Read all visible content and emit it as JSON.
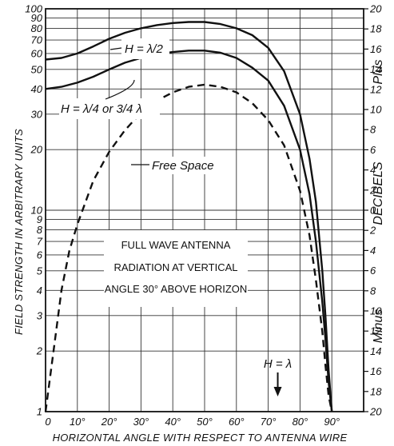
{
  "chart_data": {
    "type": "line",
    "xlabel": "HORIZONTAL ANGLE WITH RESPECT TO ANTENNA WIRE",
    "ylabel": "FIELD STRENGTH IN ARBITRARY UNITS",
    "y2label": "DECIBELS",
    "y2_plus_label": "Plus",
    "y2_minus_label": "Minus",
    "xlim": [
      0,
      100
    ],
    "ylim": [
      1,
      100
    ],
    "yscale": "log",
    "y2lim": [
      -20,
      20
    ],
    "grid": true,
    "x_ticks": [
      0,
      10,
      20,
      30,
      40,
      50,
      60,
      70,
      80,
      90
    ],
    "x_tick_labels": [
      "0",
      "10°",
      "20°",
      "30°",
      "40°",
      "50°",
      "60°",
      "70°",
      "80°",
      "90°"
    ],
    "y_ticks": [
      1,
      2,
      3,
      4,
      5,
      6,
      7,
      8,
      9,
      10,
      20,
      30,
      40,
      50,
      60,
      70,
      80,
      90,
      100
    ],
    "y_tick_labels": [
      "1",
      "2",
      "3",
      "4",
      "5",
      "6",
      "7",
      "8",
      "9",
      "10",
      "20",
      "30",
      "40",
      "50",
      "60",
      "70",
      "80",
      "90",
      "100"
    ],
    "y2_ticks": [
      20,
      18,
      16,
      14,
      12,
      10,
      8,
      6,
      4,
      2,
      0,
      -2,
      -4,
      -6,
      -8,
      -10,
      -12,
      -14,
      -16,
      -18,
      -20
    ],
    "y2_tick_labels": [
      "20",
      "18",
      "16",
      "14",
      "12",
      "10",
      "8",
      "6",
      "4",
      "2",
      "0",
      "2",
      "4",
      "6",
      "8",
      "10",
      "12",
      "14",
      "16",
      "18",
      "20"
    ],
    "annotation": [
      "FULL WAVE ANTENNA",
      "RADIATION AT VERTICAL",
      "ANGLE 30° ABOVE HORIZON"
    ],
    "marker_label": "H = λ",
    "marker_x": 73,
    "series": [
      {
        "name": "H = λ/2",
        "style": "solid",
        "x": [
          0,
          5,
          10,
          15,
          20,
          25,
          30,
          35,
          40,
          45,
          50,
          55,
          60,
          65,
          70,
          75,
          80,
          83,
          85,
          87,
          88,
          89,
          90
        ],
        "y": [
          56,
          57,
          60,
          65,
          71,
          76,
          80,
          83,
          85,
          86,
          86,
          84,
          80,
          74,
          64,
          49,
          30,
          18,
          11,
          5,
          3,
          1.6,
          1
        ]
      },
      {
        "name": "H = λ/4 or 3/4 λ",
        "style": "solid",
        "x": [
          0,
          5,
          10,
          15,
          20,
          25,
          30,
          35,
          40,
          45,
          50,
          55,
          60,
          65,
          70,
          75,
          80,
          83,
          85,
          87,
          88,
          89,
          90
        ],
        "y": [
          40,
          41,
          43,
          46,
          50,
          54,
          57,
          59.5,
          61,
          62,
          62,
          60.5,
          57,
          51,
          44,
          33,
          20,
          12,
          7,
          3.5,
          2.3,
          1.4,
          1
        ]
      },
      {
        "name": "Free Space",
        "style": "dashed",
        "x": [
          0,
          2.5,
          5,
          7.5,
          10,
          15,
          20,
          25,
          30,
          35,
          40,
          45,
          50,
          55,
          60,
          65,
          70,
          75,
          80,
          83,
          85,
          87,
          88,
          89,
          90
        ],
        "y": [
          1,
          2,
          4,
          6.3,
          8.5,
          14,
          19.5,
          25,
          30.5,
          35,
          38.5,
          41,
          42,
          41,
          38.5,
          34,
          28,
          21,
          12.5,
          7.5,
          4.5,
          2.5,
          1.7,
          1.2,
          1
        ]
      }
    ]
  }
}
